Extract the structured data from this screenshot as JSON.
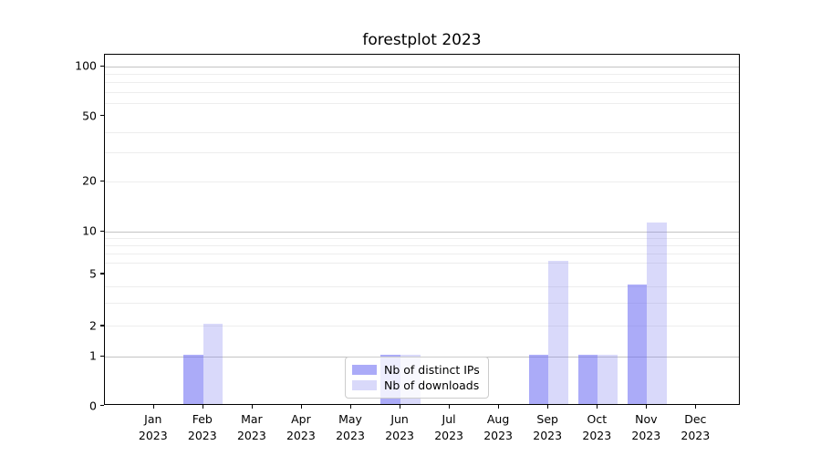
{
  "title": "forestplot 2023",
  "chart_data": {
    "type": "bar",
    "title": "forestplot 2023",
    "categories": [
      "Jan 2023",
      "Feb 2023",
      "Mar 2023",
      "Apr 2023",
      "May 2023",
      "Jun 2023",
      "Jul 2023",
      "Aug 2023",
      "Sep 2023",
      "Oct 2023",
      "Nov 2023",
      "Dec 2023"
    ],
    "series": [
      {
        "name": "Nb of distinct IPs",
        "color": "rgba(102,102,243,0.55)",
        "solid_color": "#a9a9f8",
        "values": [
          0,
          1,
          0,
          0,
          0,
          1,
          0,
          0,
          1,
          1,
          4,
          0
        ]
      },
      {
        "name": "Nb of downloads",
        "color": "rgba(130,130,240,0.30)",
        "solid_color": "#d8d8fa",
        "values": [
          0,
          2,
          0,
          0,
          0,
          1,
          0,
          0,
          6,
          1,
          11,
          0
        ]
      }
    ],
    "yscale": "symlog",
    "yticks": [
      0,
      1,
      2,
      5,
      10,
      20,
      50,
      100
    ],
    "minor_gridlines": [
      2,
      3,
      4,
      6,
      7,
      8,
      9,
      20,
      30,
      40,
      60,
      70,
      80,
      90
    ],
    "major_gridlines": [
      1,
      10,
      100
    ],
    "ylim": [
      0,
      118
    ],
    "xlabel": "",
    "ylabel": "",
    "grid": "horizontal",
    "legend_position": "lower-center-inside"
  },
  "legend": {
    "items": [
      {
        "label": "Nb of distinct IPs"
      },
      {
        "label": "Nb of downloads"
      }
    ]
  }
}
